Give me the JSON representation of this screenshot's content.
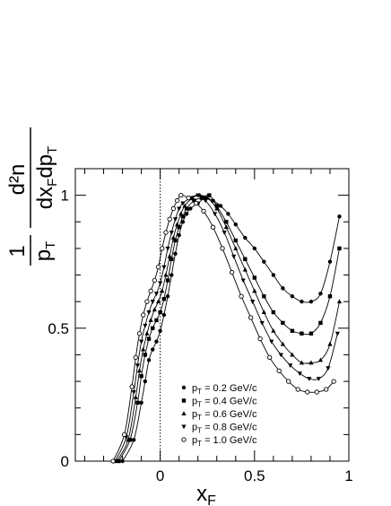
{
  "chart_data": {
    "type": "line",
    "title": "",
    "xlabel": "x",
    "xlabel_sub": "F",
    "ylabel_parts": {
      "numerator_one": "1",
      "d2n": "d²n",
      "p": "p",
      "T": "T",
      "dx": "dx",
      "F": "F",
      "dp": "dp",
      "T2": "T"
    },
    "xlim": [
      -0.45,
      1.0
    ],
    "ylim": [
      0,
      1.1
    ],
    "x_ticks": [
      {
        "value": 0,
        "label": "0"
      },
      {
        "value": 0.5,
        "label": "0.5"
      },
      {
        "value": 1,
        "label": "1"
      }
    ],
    "y_ticks": [
      {
        "value": 0,
        "label": "0"
      },
      {
        "value": 0.5,
        "label": "0.5"
      },
      {
        "value": 1,
        "label": "1"
      }
    ],
    "reference_line_x": 0,
    "legend_position": "lower-center",
    "series": [
      {
        "name": "p_T = 0.2 GeV/c",
        "legend": {
          "p": "p",
          "sub": "T",
          "rest": " = 0.2 GeV/c"
        },
        "marker": "circle-filled",
        "x": [
          -0.2,
          -0.14,
          -0.1,
          -0.08,
          -0.06,
          -0.04,
          -0.02,
          0.0,
          0.02,
          0.04,
          0.06,
          0.08,
          0.1,
          0.12,
          0.14,
          0.16,
          0.2,
          0.24,
          0.28,
          0.32,
          0.36,
          0.4,
          0.45,
          0.5,
          0.55,
          0.6,
          0.65,
          0.7,
          0.75,
          0.8,
          0.85,
          0.9,
          0.95
        ],
        "y": [
          0.0,
          0.08,
          0.22,
          0.3,
          0.38,
          0.42,
          0.45,
          0.49,
          0.55,
          0.62,
          0.7,
          0.78,
          0.85,
          0.9,
          0.93,
          0.95,
          0.97,
          0.99,
          0.98,
          0.96,
          0.93,
          0.89,
          0.84,
          0.8,
          0.75,
          0.7,
          0.65,
          0.62,
          0.6,
          0.6,
          0.63,
          0.75,
          0.92
        ]
      },
      {
        "name": "p_T = 0.4 GeV/c",
        "legend": {
          "p": "p",
          "sub": "T",
          "rest": " = 0.4 GeV/c"
        },
        "marker": "square-filled",
        "x": [
          -0.22,
          -0.16,
          -0.12,
          -0.1,
          -0.08,
          -0.06,
          -0.04,
          -0.02,
          0.0,
          0.02,
          0.04,
          0.06,
          0.08,
          0.1,
          0.12,
          0.14,
          0.18,
          0.22,
          0.26,
          0.3,
          0.35,
          0.4,
          0.45,
          0.5,
          0.55,
          0.6,
          0.65,
          0.7,
          0.75,
          0.8,
          0.85,
          0.9,
          0.95
        ],
        "y": [
          0.0,
          0.08,
          0.22,
          0.32,
          0.4,
          0.46,
          0.5,
          0.53,
          0.56,
          0.61,
          0.68,
          0.76,
          0.83,
          0.88,
          0.92,
          0.95,
          0.98,
          0.99,
          1.0,
          0.96,
          0.9,
          0.83,
          0.76,
          0.69,
          0.62,
          0.56,
          0.52,
          0.49,
          0.48,
          0.48,
          0.52,
          0.62,
          0.8
        ]
      },
      {
        "name": "p_T = 0.6 GeV/c",
        "legend": {
          "p": "p",
          "sub": "T",
          "rest": " = 0.6 GeV/c"
        },
        "marker": "triangle-up-filled",
        "x": [
          -0.23,
          -0.17,
          -0.13,
          -0.11,
          -0.09,
          -0.07,
          -0.05,
          -0.03,
          -0.01,
          0.01,
          0.03,
          0.05,
          0.07,
          0.09,
          0.11,
          0.13,
          0.17,
          0.21,
          0.25,
          0.3,
          0.35,
          0.4,
          0.45,
          0.5,
          0.55,
          0.6,
          0.65,
          0.7,
          0.75,
          0.8,
          0.85,
          0.9,
          0.95
        ],
        "y": [
          0.0,
          0.08,
          0.24,
          0.34,
          0.42,
          0.48,
          0.53,
          0.57,
          0.6,
          0.64,
          0.7,
          0.77,
          0.84,
          0.89,
          0.93,
          0.96,
          0.99,
          1.0,
          0.99,
          0.95,
          0.88,
          0.8,
          0.72,
          0.64,
          0.56,
          0.49,
          0.44,
          0.4,
          0.37,
          0.37,
          0.38,
          0.44,
          0.6
        ]
      },
      {
        "name": "p_T = 0.8 GeV/c",
        "legend": {
          "p": "p",
          "sub": "T",
          "rest": " = 0.8 GeV/c"
        },
        "marker": "triangle-down-filled",
        "x": [
          -0.24,
          -0.18,
          -0.14,
          -0.12,
          -0.1,
          -0.08,
          -0.06,
          -0.04,
          -0.02,
          0.0,
          0.02,
          0.04,
          0.06,
          0.08,
          0.1,
          0.12,
          0.16,
          0.2,
          0.24,
          0.29,
          0.34,
          0.39,
          0.44,
          0.49,
          0.54,
          0.59,
          0.64,
          0.69,
          0.74,
          0.79,
          0.84,
          0.89,
          0.94
        ],
        "y": [
          0.0,
          0.09,
          0.26,
          0.36,
          0.45,
          0.51,
          0.56,
          0.6,
          0.63,
          0.67,
          0.73,
          0.8,
          0.86,
          0.91,
          0.95,
          0.97,
          0.99,
          1.0,
          0.98,
          0.93,
          0.86,
          0.77,
          0.68,
          0.6,
          0.52,
          0.45,
          0.4,
          0.36,
          0.33,
          0.31,
          0.31,
          0.35,
          0.48
        ]
      },
      {
        "name": "p_T = 1.0 GeV/c",
        "legend": {
          "p": "p",
          "sub": "T",
          "rest": " = 1.0 GeV/c"
        },
        "marker": "circle-open",
        "x": [
          -0.25,
          -0.19,
          -0.15,
          -0.13,
          -0.11,
          -0.09,
          -0.07,
          -0.05,
          -0.03,
          -0.01,
          0.01,
          0.03,
          0.05,
          0.07,
          0.09,
          0.11,
          0.15,
          0.19,
          0.23,
          0.28,
          0.33,
          0.38,
          0.43,
          0.48,
          0.53,
          0.58,
          0.63,
          0.68,
          0.73,
          0.78,
          0.83,
          0.88,
          0.92
        ],
        "y": [
          0.0,
          0.1,
          0.28,
          0.39,
          0.48,
          0.55,
          0.6,
          0.64,
          0.68,
          0.73,
          0.8,
          0.86,
          0.91,
          0.95,
          0.98,
          1.0,
          0.99,
          0.97,
          0.94,
          0.88,
          0.8,
          0.71,
          0.62,
          0.54,
          0.46,
          0.39,
          0.34,
          0.3,
          0.27,
          0.26,
          0.26,
          0.27,
          0.3
        ]
      }
    ]
  }
}
